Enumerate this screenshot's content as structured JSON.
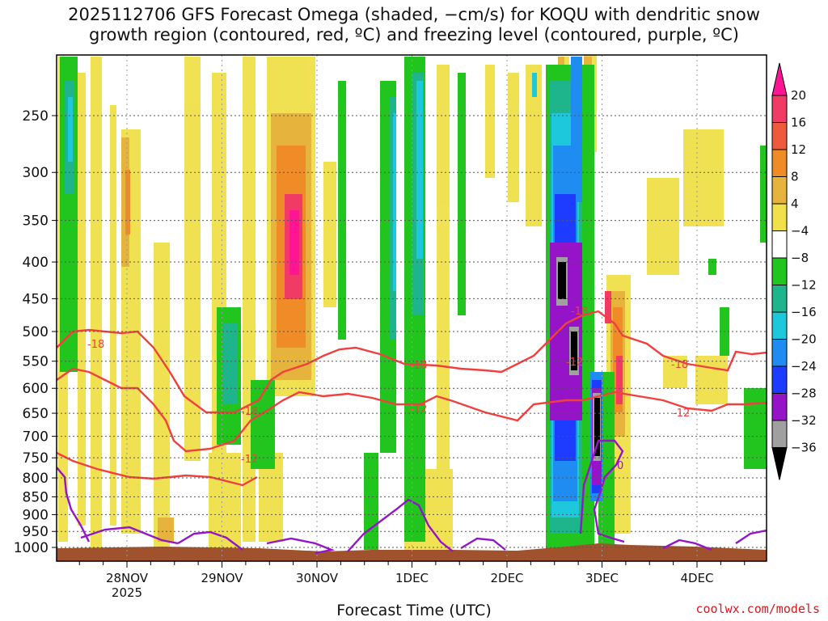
{
  "title_line1": "2025112706 GFS Forecast Omega (shaded, −cm/s) for KOQU with dendritic snow",
  "title_line2": "growth region (contoured, red, ºC) and freezing level (contoured, purple, ºC)",
  "x_axis_title": "Forecast Time (UTC)",
  "credit": "coolwx.com/models",
  "chart_data": {
    "type": "heatmap",
    "xlabel": "Forecast Time (UTC)",
    "ylabel": "",
    "y_scale": "log-pressure, inverted",
    "y_ticks": [
      250,
      300,
      350,
      400,
      450,
      500,
      550,
      600,
      650,
      700,
      750,
      800,
      850,
      900,
      950,
      1000
    ],
    "x_ticks": [
      {
        "label": "28NOV",
        "sub": "2025"
      },
      {
        "label": "29NOV",
        "sub": ""
      },
      {
        "label": "30NOV",
        "sub": ""
      },
      {
        "label": "1DEC",
        "sub": ""
      },
      {
        "label": "2DEC",
        "sub": ""
      },
      {
        "label": "3DEC",
        "sub": ""
      },
      {
        "label": "4DEC",
        "sub": ""
      }
    ],
    "colorbar": {
      "levels": [
        -36,
        -32,
        -28,
        -24,
        -20,
        -16,
        -12,
        -8,
        -4,
        4,
        8,
        12,
        16,
        20
      ],
      "labels": [
        "20",
        "16",
        "12",
        "8",
        "4",
        "−4",
        "−8",
        "−12",
        "−16",
        "−20",
        "−24",
        "−28",
        "−32",
        "−36"
      ],
      "colors": [
        "#ffffff",
        "#f0e04a",
        "#e6b43c",
        "#f08c28",
        "#f05a3c",
        "#ff1493",
        "#f03c64"
      ]
    },
    "contour_labels": [
      "-18",
      "-12",
      "0"
    ],
    "grid": true
  }
}
